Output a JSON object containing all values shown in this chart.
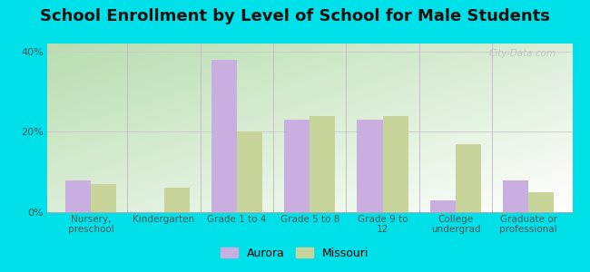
{
  "title": "School Enrollment by Level of School for Male Students",
  "categories": [
    "Nursery,\npreschool",
    "Kindergarten",
    "Grade 1 to 4",
    "Grade 5 to 8",
    "Grade 9 to\n12",
    "College\nundergrad",
    "Graduate or\nprofessional"
  ],
  "aurora_values": [
    8,
    0,
    38,
    23,
    23,
    3,
    8
  ],
  "missouri_values": [
    7,
    6,
    20,
    24,
    24,
    17,
    5
  ],
  "aurora_color": "#c9aee0",
  "missouri_color": "#c8d49a",
  "background_outer": "#00e0e8",
  "plot_bg_colors": [
    "#c8e8c0",
    "#ffffff"
  ],
  "yticks": [
    0,
    20,
    40
  ],
  "ylim": [
    0,
    42
  ],
  "legend_labels": [
    "Aurora",
    "Missouri"
  ],
  "title_fontsize": 13,
  "watermark": "City-Data.com"
}
